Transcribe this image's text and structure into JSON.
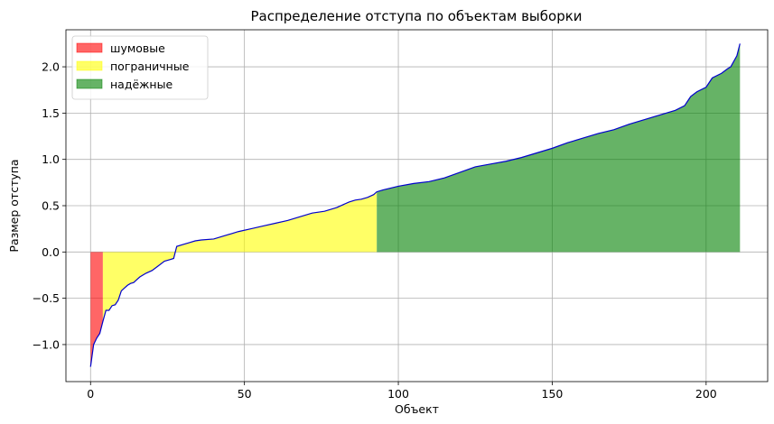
{
  "chart_data": {
    "type": "area",
    "title": "Распределение отступа по объектам выборки",
    "xlabel": "Объект",
    "ylabel": "Размер отступа",
    "xlim": [
      -8,
      220
    ],
    "ylim": [
      -1.4,
      2.4
    ],
    "xticks": [
      0,
      50,
      100,
      150,
      200
    ],
    "yticks": [
      -1.0,
      -0.5,
      0.0,
      0.5,
      1.0,
      1.5,
      2.0
    ],
    "xtick_labels": [
      "0",
      "50",
      "100",
      "150",
      "200"
    ],
    "ytick_labels": [
      "−1.0",
      "−0.5",
      "0.0",
      "0.5",
      "1.0",
      "1.5",
      "2.0"
    ],
    "grid": true,
    "legend_position": "top-left",
    "legend": [
      {
        "label": "шумовые",
        "color": "#ff0000",
        "alpha": 0.6
      },
      {
        "label": "пограничные",
        "color": "#ffff00",
        "alpha": 0.6
      },
      {
        "label": "надёжные",
        "color": "#008000",
        "alpha": 0.6
      }
    ],
    "line_color": "#0000cc",
    "regions": [
      {
        "name": "шумовые",
        "x_start": 0,
        "x_end": 4
      },
      {
        "name": "пограничные",
        "x_start": 4,
        "x_end": 93
      },
      {
        "name": "надёжные",
        "x_start": 93,
        "x_end": 211
      }
    ],
    "curve": {
      "x": [
        0,
        1,
        2,
        3,
        4,
        5,
        6,
        7,
        8,
        9,
        10,
        11,
        12,
        13,
        14,
        15,
        16,
        18,
        20,
        22,
        24,
        26,
        27,
        28,
        30,
        32,
        34,
        36,
        40,
        44,
        48,
        52,
        56,
        60,
        64,
        68,
        72,
        76,
        80,
        84,
        86,
        88,
        90,
        92,
        93,
        95,
        100,
        105,
        110,
        115,
        120,
        125,
        130,
        135,
        140,
        145,
        150,
        155,
        160,
        165,
        170,
        175,
        180,
        185,
        190,
        193,
        195,
        197,
        200,
        202,
        205,
        207,
        208,
        210,
        211
      ],
      "y": [
        -1.24,
        -1.0,
        -0.93,
        -0.88,
        -0.75,
        -0.63,
        -0.63,
        -0.58,
        -0.57,
        -0.52,
        -0.42,
        -0.39,
        -0.36,
        -0.34,
        -0.33,
        -0.3,
        -0.27,
        -0.23,
        -0.2,
        -0.15,
        -0.1,
        -0.08,
        -0.07,
        0.06,
        0.08,
        0.1,
        0.12,
        0.13,
        0.14,
        0.18,
        0.22,
        0.25,
        0.28,
        0.31,
        0.34,
        0.38,
        0.42,
        0.44,
        0.48,
        0.54,
        0.56,
        0.57,
        0.59,
        0.62,
        0.65,
        0.67,
        0.71,
        0.74,
        0.76,
        0.8,
        0.86,
        0.92,
        0.95,
        0.98,
        1.02,
        1.07,
        1.12,
        1.18,
        1.23,
        1.28,
        1.32,
        1.38,
        1.43,
        1.48,
        1.53,
        1.58,
        1.68,
        1.73,
        1.78,
        1.88,
        1.93,
        1.98,
        2.0,
        2.12,
        2.25
      ]
    }
  }
}
